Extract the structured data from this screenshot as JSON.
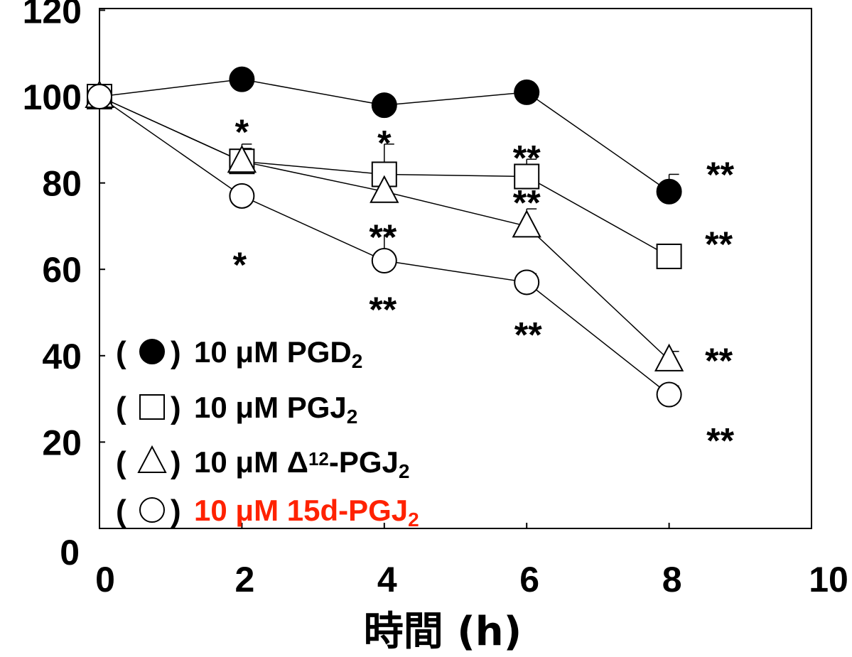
{
  "chart_data": {
    "type": "line",
    "title": "",
    "xlabel": "時間 (h)",
    "ylabel": "",
    "xlim": [
      0,
      10
    ],
    "ylim": [
      0,
      120
    ],
    "x_ticks": [
      "0",
      "2",
      "4",
      "6",
      "8",
      "10"
    ],
    "y_ticks": [
      "0",
      "20",
      "40",
      "60",
      "80",
      "100",
      "120"
    ],
    "grid": false,
    "legend_position": "bottom-left",
    "series": [
      {
        "marker": "filled-circle",
        "legend": {
          "prefix": "10 μM PGD",
          "sub": "2",
          "sup": "",
          "suffix": "",
          "color": "#000000"
        },
        "x": [
          0,
          2,
          4,
          6,
          8
        ],
        "y": [
          100,
          104,
          98,
          101,
          78
        ],
        "error": [
          0,
          1.5,
          1.5,
          1.5,
          4
        ],
        "significance": [
          "",
          "",
          "",
          "",
          "**"
        ]
      },
      {
        "marker": "open-square",
        "legend": {
          "prefix": "10 μM PGJ",
          "sub": "2",
          "sup": "",
          "suffix": "",
          "color": "#000000"
        },
        "x": [
          0,
          2,
          4,
          6,
          8
        ],
        "y": [
          100,
          85,
          82,
          81.5,
          63
        ],
        "error": [
          0,
          4,
          7,
          4,
          1.5
        ],
        "significance": [
          "",
          "*",
          "*",
          "**",
          "**"
        ]
      },
      {
        "marker": "open-triangle",
        "legend": {
          "prefix": "10 μM Δ",
          "sub": "",
          "sup": "12",
          "suffix": "-PGJ",
          "sub2": "2",
          "color": "#000000"
        },
        "x": [
          0,
          2,
          4,
          6,
          8
        ],
        "y": [
          100,
          85,
          78,
          70,
          39
        ],
        "error": [
          0,
          3,
          0,
          4,
          2
        ],
        "significance": [
          "",
          "",
          "**",
          "**",
          "**"
        ]
      },
      {
        "marker": "open-circle",
        "legend": {
          "prefix": "10 μM 15d-PGJ",
          "sub": "2",
          "sup": "",
          "suffix": "",
          "color": "#ff2200"
        },
        "x": [
          0,
          2,
          4,
          6,
          8
        ],
        "y": [
          100,
          77,
          62,
          57,
          31
        ],
        "error": [
          0,
          0,
          6,
          2,
          2
        ],
        "significance": [
          "",
          "*",
          "**",
          "**",
          "**"
        ]
      }
    ]
  }
}
